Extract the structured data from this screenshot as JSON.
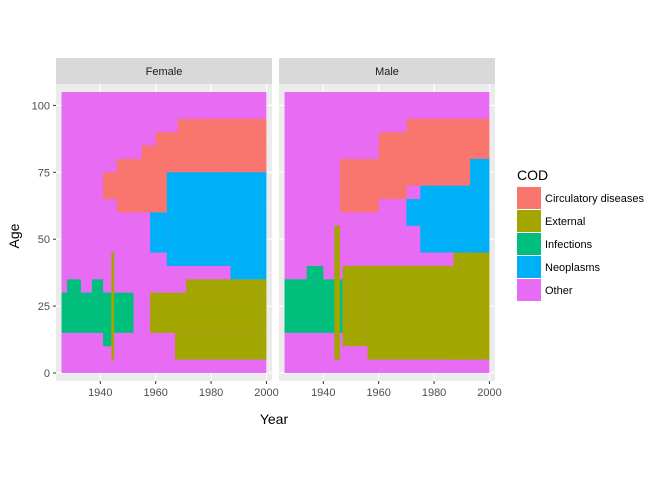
{
  "chart_data": {
    "type": "heatmap",
    "facet_var": "Sex",
    "facets": [
      "Female",
      "Male"
    ],
    "xlabel": "Year",
    "ylabel": "Age",
    "xlim": [
      1924,
      2002
    ],
    "ylim": [
      -3,
      108
    ],
    "x_ticks": [
      1940,
      1960,
      1980,
      2000
    ],
    "y_ticks": [
      0,
      25,
      50,
      75,
      100
    ],
    "grid": true,
    "legend_title": "COD",
    "legend_position": "right",
    "categories": [
      "Circulatory diseases",
      "External",
      "Infections",
      "Neoplasms",
      "Other"
    ],
    "colors": {
      "Circulatory diseases": "#F8766D",
      "External": "#A3A500",
      "Infections": "#00BF7D",
      "Neoplasms": "#00B0F6",
      "Other": "#E76BF3"
    },
    "data_extent": {
      "year": [
        1926,
        2000
      ],
      "age": [
        0,
        105
      ]
    },
    "panels": [
      {
        "name": "Female",
        "regions": [
          {
            "cod": "Other",
            "year": [
              1926,
              2000
            ],
            "age": [
              0,
              105
            ]
          },
          {
            "cod": "Infections",
            "year": [
              1926,
              1952
            ],
            "age": [
              15,
              30
            ]
          },
          {
            "cod": "Infections",
            "year": [
              1928,
              1933
            ],
            "age": [
              30,
              35
            ]
          },
          {
            "cod": "Infections",
            "year": [
              1937,
              1941
            ],
            "age": [
              30,
              35
            ]
          },
          {
            "cod": "Infections",
            "year": [
              1941,
              1944
            ],
            "age": [
              10,
              15
            ]
          },
          {
            "cod": "External",
            "year": [
              1944,
              1945
            ],
            "age": [
              5,
              45
            ]
          },
          {
            "cod": "External",
            "year": [
              1958,
              2000
            ],
            "age": [
              15,
              30
            ]
          },
          {
            "cod": "External",
            "year": [
              1967,
              2000
            ],
            "age": [
              5,
              15
            ]
          },
          {
            "cod": "External",
            "year": [
              1971,
              2000
            ],
            "age": [
              30,
              35
            ]
          },
          {
            "cod": "Circulatory diseases",
            "year": [
              1941,
              1946
            ],
            "age": [
              65,
              75
            ]
          },
          {
            "cod": "Circulatory diseases",
            "year": [
              1946,
              1955
            ],
            "age": [
              60,
              80
            ]
          },
          {
            "cod": "Circulatory diseases",
            "year": [
              1955,
              1960
            ],
            "age": [
              60,
              85
            ]
          },
          {
            "cod": "Circulatory diseases",
            "year": [
              1960,
              1968
            ],
            "age": [
              60,
              90
            ]
          },
          {
            "cod": "Circulatory diseases",
            "year": [
              1968,
              1978
            ],
            "age": [
              75,
              95
            ]
          },
          {
            "cod": "Circulatory diseases",
            "year": [
              1978,
              2000
            ],
            "age": [
              75,
              95
            ]
          },
          {
            "cod": "Neoplasms",
            "year": [
              1958,
              1964
            ],
            "age": [
              45,
              60
            ]
          },
          {
            "cod": "Neoplasms",
            "year": [
              1964,
              1987
            ],
            "age": [
              40,
              75
            ]
          },
          {
            "cod": "Neoplasms",
            "year": [
              1987,
              2000
            ],
            "age": [
              35,
              75
            ]
          }
        ]
      },
      {
        "name": "Male",
        "regions": [
          {
            "cod": "Other",
            "year": [
              1926,
              2000
            ],
            "age": [
              0,
              105
            ]
          },
          {
            "cod": "Infections",
            "year": [
              1926,
              1947
            ],
            "age": [
              15,
              35
            ]
          },
          {
            "cod": "Infections",
            "year": [
              1934,
              1940
            ],
            "age": [
              35,
              40
            ]
          },
          {
            "cod": "External",
            "year": [
              1944,
              1946
            ],
            "age": [
              5,
              55
            ]
          },
          {
            "cod": "External",
            "year": [
              1947,
              1956
            ],
            "age": [
              10,
              40
            ]
          },
          {
            "cod": "External",
            "year": [
              1956,
              1994
            ],
            "age": [
              5,
              40
            ]
          },
          {
            "cod": "External",
            "year": [
              1987,
              2000
            ],
            "age": [
              5,
              45
            ]
          },
          {
            "cod": "Circulatory diseases",
            "year": [
              1946,
              1960
            ],
            "age": [
              60,
              80
            ]
          },
          {
            "cod": "Circulatory diseases",
            "year": [
              1960,
              1970
            ],
            "age": [
              65,
              90
            ]
          },
          {
            "cod": "Circulatory diseases",
            "year": [
              1970,
              2000
            ],
            "age": [
              70,
              95
            ]
          },
          {
            "cod": "Neoplasms",
            "year": [
              1970,
              1975
            ],
            "age": [
              55,
              65
            ]
          },
          {
            "cod": "Neoplasms",
            "year": [
              1975,
              1993
            ],
            "age": [
              45,
              70
            ]
          },
          {
            "cod": "Neoplasms",
            "year": [
              1993,
              2000
            ],
            "age": [
              45,
              80
            ]
          }
        ]
      }
    ]
  }
}
